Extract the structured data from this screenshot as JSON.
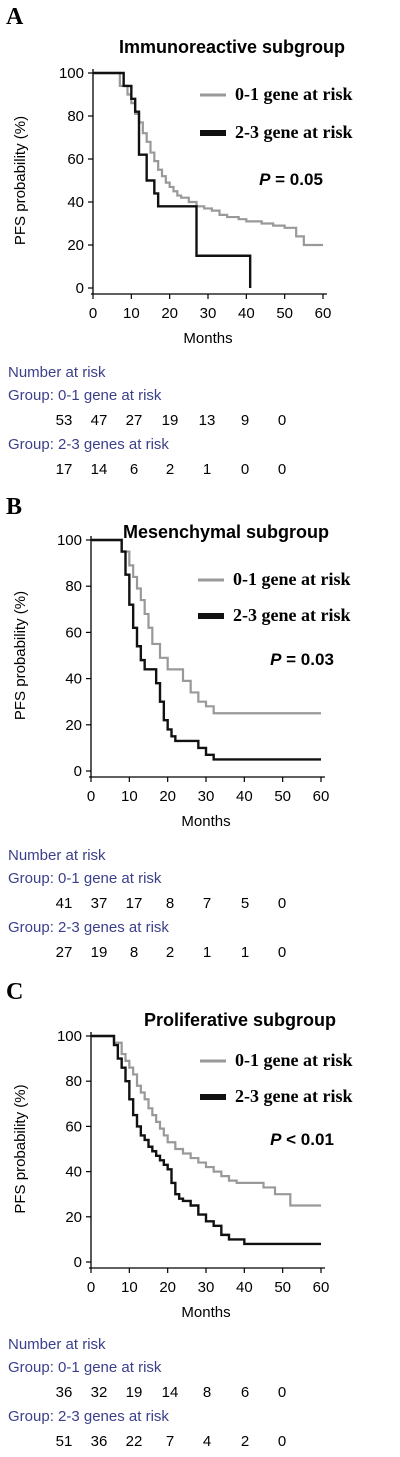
{
  "panels": [
    {
      "letter": "A",
      "title": "Immunoreactive subgroup",
      "p_label": "P",
      "p_value": "= 0.05",
      "risk_header": "Number at risk",
      "risk_group1_label": "Group: 0-1 gene at risk",
      "risk_group1_values": [
        "53",
        "47",
        "27",
        "19",
        "13",
        "9",
        "0"
      ],
      "risk_group2_label": "Group: 2-3 genes at risk",
      "risk_group2_values": [
        "17",
        "14",
        "6",
        "2",
        "1",
        "0",
        "0"
      ]
    },
    {
      "letter": "B",
      "title": "Mesenchymal subgroup",
      "p_label": "P",
      "p_value": "= 0.03",
      "risk_header": "Number at risk",
      "risk_group1_label": "Group: 0-1 gene at risk",
      "risk_group1_values": [
        "41",
        "37",
        "17",
        "8",
        "7",
        "5",
        "0"
      ],
      "risk_group2_label": "Group: 2-3 genes at risk",
      "risk_group2_values": [
        "27",
        "19",
        "8",
        "2",
        "1",
        "1",
        "0"
      ]
    },
    {
      "letter": "C",
      "title": "Proliferative subgroup",
      "p_label": "P",
      "p_value": "< 0.01",
      "risk_header": "Number at risk",
      "risk_group1_label": "Group: 0-1 gene at risk",
      "risk_group1_values": [
        "36",
        "32",
        "19",
        "14",
        "8",
        "6",
        "0"
      ],
      "risk_group2_label": "Group: 2-3 genes at risk",
      "risk_group2_values": [
        "51",
        "36",
        "22",
        "7",
        "4",
        "2",
        "0"
      ]
    }
  ],
  "colors": {
    "group1": "#999999",
    "group2": "#111111",
    "axis": "#000000",
    "risk_text": "#3b3f8a"
  },
  "chart_data": [
    {
      "type": "line",
      "title": "Immunoreactive subgroup",
      "xlabel": "Months",
      "ylabel": "PFS probability (%)",
      "xlim": [
        0,
        60
      ],
      "ylim": [
        0,
        100
      ],
      "xticks": [
        0,
        10,
        20,
        30,
        40,
        50,
        60
      ],
      "yticks": [
        0,
        20,
        40,
        60,
        80,
        100
      ],
      "step": true,
      "grid": false,
      "legend_position": "top-right",
      "series": [
        {
          "name": "0-1 gene at risk",
          "x": [
            0,
            7,
            9,
            10,
            11,
            12,
            13,
            14,
            15,
            16,
            17,
            18,
            19,
            20,
            21,
            22,
            23,
            25,
            27,
            29,
            31,
            33,
            35,
            38,
            40,
            44,
            47,
            50,
            53,
            55,
            60
          ],
          "y": [
            100,
            94,
            90,
            86,
            81,
            77,
            72,
            68,
            63,
            59,
            55,
            52,
            49,
            47,
            45,
            43,
            42,
            40,
            38,
            37,
            36,
            34,
            33,
            32,
            31,
            30,
            29,
            28,
            24,
            20,
            20
          ]
        },
        {
          "name": "2-3 gene at risk",
          "x": [
            0,
            8,
            10,
            11,
            12,
            14,
            16,
            17,
            27,
            41
          ],
          "y": [
            100,
            94,
            88,
            82,
            62,
            50,
            44,
            38,
            15,
            0
          ]
        }
      ]
    },
    {
      "type": "line",
      "title": "Mesenchymal subgroup",
      "xlabel": "Months",
      "ylabel": "PFS probability (%)",
      "xlim": [
        0,
        60
      ],
      "ylim": [
        0,
        100
      ],
      "xticks": [
        0,
        10,
        20,
        30,
        40,
        50,
        60
      ],
      "yticks": [
        0,
        20,
        40,
        60,
        80,
        100
      ],
      "step": true,
      "grid": false,
      "legend_position": "top-right",
      "series": [
        {
          "name": "0-1 gene at risk",
          "x": [
            0,
            8,
            10,
            11,
            12,
            13,
            14,
            15,
            16,
            18,
            20,
            24,
            26,
            28,
            30,
            32,
            60
          ],
          "y": [
            100,
            95,
            89,
            84,
            79,
            74,
            68,
            62,
            55,
            49,
            44,
            39,
            34,
            30,
            28,
            25,
            25
          ]
        },
        {
          "name": "2-3 gene at risk",
          "x": [
            0,
            8,
            9,
            10,
            11,
            12,
            13,
            14,
            17,
            18,
            19,
            20,
            21,
            22,
            23,
            28,
            30,
            32,
            60
          ],
          "y": [
            100,
            95,
            85,
            72,
            62,
            54,
            48,
            44,
            38,
            30,
            22,
            18,
            15,
            13,
            13,
            10,
            7,
            5,
            5
          ]
        }
      ]
    },
    {
      "type": "line",
      "title": "Proliferative subgroup",
      "xlabel": "Months",
      "ylabel": "PFS probability (%)",
      "xlim": [
        0,
        60
      ],
      "ylim": [
        0,
        100
      ],
      "xticks": [
        0,
        10,
        20,
        30,
        40,
        50,
        60
      ],
      "yticks": [
        0,
        20,
        40,
        60,
        80,
        100
      ],
      "step": true,
      "grid": false,
      "legend_position": "top-right",
      "series": [
        {
          "name": "0-1 gene at risk",
          "x": [
            0,
            6,
            8,
            9,
            10,
            11,
            12,
            13,
            14,
            15,
            16,
            17,
            18,
            19,
            20,
            22,
            24,
            26,
            28,
            30,
            32,
            34,
            36,
            38,
            40,
            45,
            48,
            52,
            60
          ],
          "y": [
            100,
            97,
            92,
            89,
            86,
            83,
            78,
            75,
            72,
            68,
            65,
            62,
            59,
            56,
            53,
            50,
            48,
            46,
            44,
            42,
            40,
            38,
            36,
            35,
            35,
            33,
            30,
            25,
            25
          ]
        },
        {
          "name": "2-3 gene at risk",
          "x": [
            0,
            6,
            7,
            8,
            9,
            10,
            11,
            12,
            13,
            14,
            15,
            16,
            17,
            18,
            19,
            20,
            21,
            22,
            23,
            24,
            26,
            28,
            30,
            32,
            34,
            36,
            40,
            60
          ],
          "y": [
            100,
            96,
            90,
            86,
            80,
            72,
            65,
            60,
            56,
            54,
            51,
            49,
            47,
            45,
            43,
            41,
            35,
            30,
            28,
            27,
            25,
            21,
            18,
            16,
            12,
            10,
            8,
            8
          ]
        }
      ]
    }
  ]
}
